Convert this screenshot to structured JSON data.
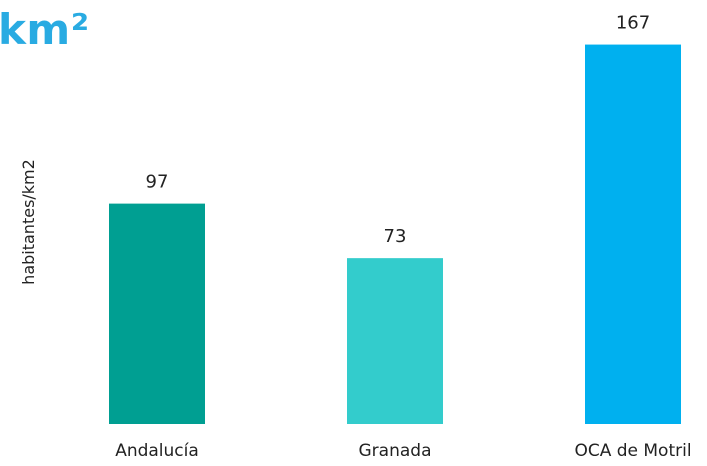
{
  "header": {
    "title_fragment": "km²"
  },
  "colors": {
    "title": "#29abe2",
    "andalucia": "#009f92",
    "granada": "#33cccc",
    "oca_motril": "#00b0ef"
  },
  "chart_data": {
    "type": "bar",
    "categories": [
      "Andalucía",
      "Granada",
      "OCA de Motril"
    ],
    "values": [
      97,
      73,
      167
    ],
    "value_labels": [
      "97",
      "73",
      "167"
    ],
    "bar_colors": [
      "#009f92",
      "#33cccc",
      "#00b0ef"
    ],
    "title": "",
    "xlabel": "",
    "ylabel": "habitantes/km2",
    "ylim": [
      0,
      175
    ],
    "grid": false,
    "legend": "none"
  }
}
